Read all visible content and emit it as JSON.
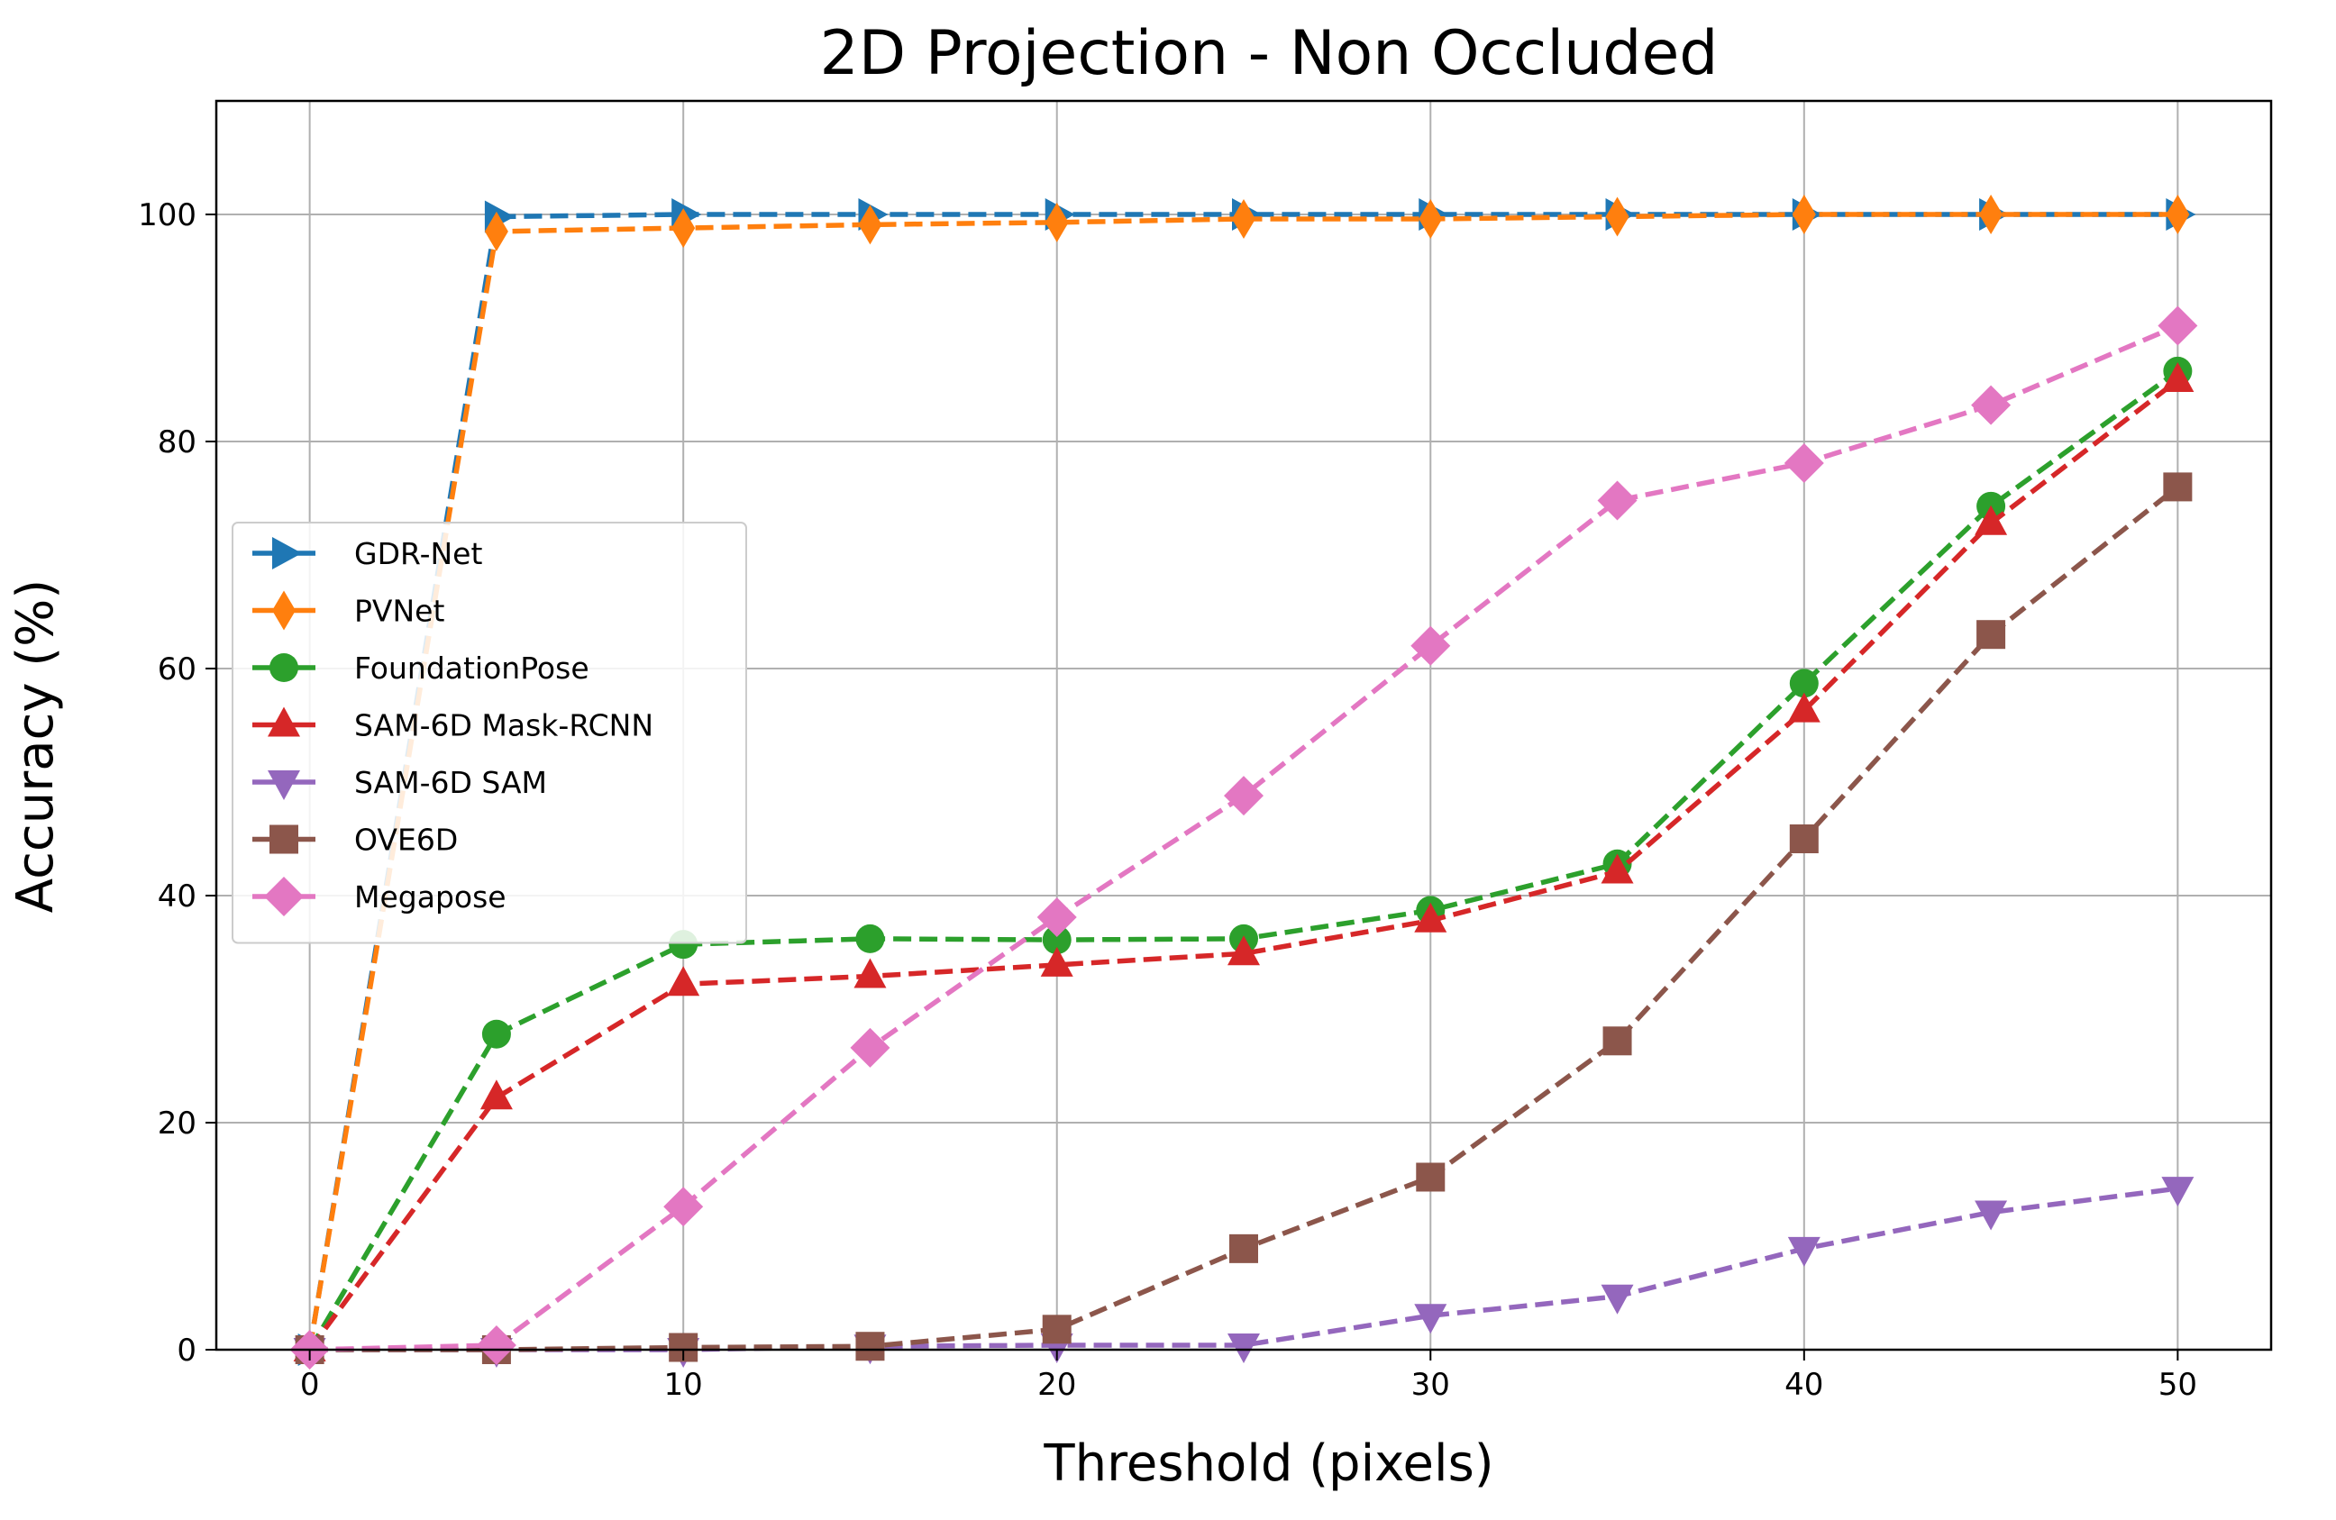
{
  "chart_data": {
    "type": "line",
    "title": "2D Projection - Non Occluded",
    "xlabel": "Threshold (pixels)",
    "ylabel": "Accuracy (%)",
    "xlim": [
      -2.5,
      52.5
    ],
    "ylim": [
      0,
      110
    ],
    "xticks": [
      0,
      10,
      20,
      30,
      40,
      50
    ],
    "yticks": [
      0,
      20,
      40,
      60,
      80,
      100
    ],
    "grid": true,
    "legend_position": "center-left",
    "x": [
      0,
      5,
      10,
      15,
      20,
      25,
      30,
      35,
      40,
      45,
      50
    ],
    "series": [
      {
        "name": "GDR-Net",
        "color": "#1f77b4",
        "marker": "triangle-right",
        "values": [
          0,
          99.8,
          100,
          100,
          100,
          100,
          100,
          100,
          100,
          100,
          100
        ]
      },
      {
        "name": "PVNet",
        "color": "#ff7f0e",
        "marker": "thin-diamond",
        "values": [
          0,
          98.5,
          98.8,
          99.1,
          99.3,
          99.6,
          99.6,
          99.8,
          100,
          100,
          100
        ]
      },
      {
        "name": "FoundationPose",
        "color": "#2ca02c",
        "marker": "circle",
        "values": [
          0,
          27.8,
          35.7,
          36.2,
          36.1,
          36.2,
          38.7,
          42.8,
          58.7,
          74.3,
          86.2
        ]
      },
      {
        "name": "SAM-6D Mask-RCNN",
        "color": "#d62728",
        "marker": "triangle-up",
        "values": [
          0,
          22.2,
          32.2,
          32.9,
          33.9,
          34.9,
          37.8,
          42.1,
          56.3,
          72.8,
          85.4
        ]
      },
      {
        "name": "SAM-6D SAM",
        "color": "#9467bd",
        "marker": "triangle-down",
        "values": [
          0,
          0,
          0,
          0.3,
          0.4,
          0.4,
          3.0,
          4.7,
          8.9,
          12.1,
          14.2
        ]
      },
      {
        "name": "OVE6D",
        "color": "#8c564b",
        "marker": "square",
        "values": [
          0,
          0,
          0.2,
          0.3,
          1.8,
          8.9,
          15.2,
          27.2,
          45.0,
          63.0,
          76.0
        ]
      },
      {
        "name": "Megapose",
        "color": "#e377c2",
        "marker": "diamond",
        "values": [
          0,
          0.4,
          12.6,
          26.6,
          38.1,
          48.8,
          62.0,
          74.8,
          78.1,
          83.2,
          90.2
        ]
      }
    ]
  }
}
